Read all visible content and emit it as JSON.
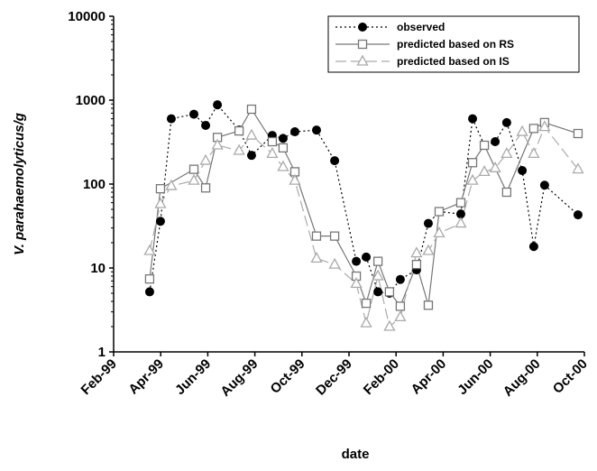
{
  "chart_data": {
    "type": "line",
    "xlabel": "date",
    "ylabel": "V. parahaemolyticus/g",
    "yscale": "log",
    "ylim": [
      1,
      10000
    ],
    "yticks": [
      1,
      10,
      100,
      1000,
      10000
    ],
    "xlim": [
      0,
      20
    ],
    "xticks": [
      {
        "value": 0,
        "label": "Feb-99"
      },
      {
        "value": 2,
        "label": "Apr-99"
      },
      {
        "value": 4,
        "label": "Jun-99"
      },
      {
        "value": 6,
        "label": "Aug-99"
      },
      {
        "value": 8,
        "label": "Oct-99"
      },
      {
        "value": 10,
        "label": "Dec-99"
      },
      {
        "value": 12,
        "label": "Feb-00"
      },
      {
        "value": 14,
        "label": "Apr-00"
      },
      {
        "value": 16,
        "label": "Jun-00"
      },
      {
        "value": 18,
        "label": "Aug-00"
      },
      {
        "value": 20,
        "label": "Oct-00"
      }
    ],
    "legend": "upper right",
    "series": [
      {
        "name": "observed",
        "color": "#000000",
        "marker": "circle",
        "dash": "dotted",
        "x": [
          1.53,
          1.99,
          2.45,
          3.41,
          3.91,
          4.41,
          5.33,
          5.86,
          6.74,
          7.2,
          7.7,
          8.62,
          9.39,
          10.31,
          10.73,
          11.23,
          11.72,
          12.18,
          12.87,
          13.37,
          13.83,
          14.75,
          15.25,
          15.75,
          16.21,
          16.7,
          17.36,
          17.85,
          18.31,
          19.73
        ],
        "values": [
          5.2,
          36,
          600,
          680,
          500,
          880,
          440,
          220,
          380,
          350,
          420,
          440,
          190,
          12,
          13.5,
          5.2,
          5.0,
          7.3,
          9.5,
          34,
          47,
          44,
          600,
          290,
          320,
          540,
          145,
          18,
          97,
          43
        ]
      },
      {
        "name": "predicted based on RS",
        "color": "#777777",
        "marker": "square",
        "dash": "solid",
        "x": [
          1.53,
          1.99,
          3.41,
          3.91,
          4.41,
          5.33,
          5.86,
          6.74,
          7.2,
          7.7,
          8.62,
          9.39,
          10.31,
          10.73,
          11.23,
          11.72,
          12.18,
          12.87,
          13.37,
          13.83,
          14.75,
          15.25,
          15.75,
          16.7,
          17.85,
          18.31,
          19.73
        ],
        "values": [
          7.4,
          88,
          150,
          90,
          360,
          430,
          780,
          320,
          270,
          140,
          24,
          24,
          8,
          3.8,
          12,
          5.2,
          3.5,
          11,
          3.6,
          47,
          60,
          180,
          290,
          80,
          460,
          540,
          400
        ]
      },
      {
        "name": "predicted based on IS",
        "color": "#aaaaaa",
        "marker": "triangle",
        "dash": "dashed",
        "x": [
          1.53,
          1.99,
          2.45,
          3.41,
          3.91,
          4.41,
          5.33,
          5.86,
          6.74,
          7.2,
          7.7,
          8.62,
          9.39,
          10.31,
          10.73,
          11.23,
          11.72,
          12.18,
          12.87,
          13.37,
          13.83,
          14.75,
          15.25,
          15.75,
          16.21,
          16.7,
          17.36,
          17.85,
          18.31,
          19.73
        ],
        "values": [
          16,
          58,
          95,
          110,
          190,
          290,
          250,
          380,
          230,
          160,
          110,
          13,
          11,
          6.5,
          2.2,
          8,
          2.0,
          2.6,
          15,
          16,
          26,
          34,
          110,
          140,
          155,
          230,
          420,
          230,
          480,
          150
        ]
      }
    ]
  }
}
